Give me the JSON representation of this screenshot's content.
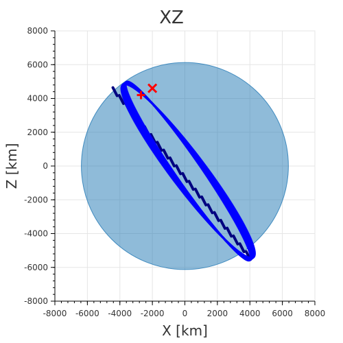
{
  "chart_data": {
    "type": "scatter",
    "title": "XZ",
    "xlabel": "X [km]",
    "ylabel": "Z [km]",
    "xlim": [
      -8000,
      8000
    ],
    "ylim": [
      -8000,
      8000
    ],
    "x_ticks": [
      "-8000",
      "-6000",
      "-4000",
      "-2000",
      "0",
      "2000",
      "4000",
      "6000",
      "8000"
    ],
    "y_ticks": [
      "8000",
      "6000",
      "4000",
      "2000",
      "0",
      "-2000",
      "-4000",
      "-6000",
      "-8000"
    ],
    "grid": true,
    "earth": {
      "center": [
        0,
        0
      ],
      "radius": 6371,
      "color": "#1f77b4",
      "opacity": 0.5
    },
    "orbit": {
      "color": "#0000ff",
      "passes": 18,
      "center": [
        200,
        -300
      ],
      "semi_major": 6500,
      "semi_minor": 900,
      "tilt_deg": -53,
      "tilt_spread_deg": 2.5
    },
    "ground_track": {
      "color": "#000080",
      "start": [
        -4300,
        4400
      ],
      "end": [
        3900,
        -5300
      ],
      "stripes": 22,
      "stripe_length": 550
    },
    "markers": [
      {
        "name": "start",
        "symbol": "cross",
        "x": -2700,
        "z": 4200,
        "color": "#ff0000"
      },
      {
        "name": "end",
        "symbol": "x",
        "x": -2000,
        "z": 4600,
        "color": "#ff0000"
      }
    ]
  }
}
